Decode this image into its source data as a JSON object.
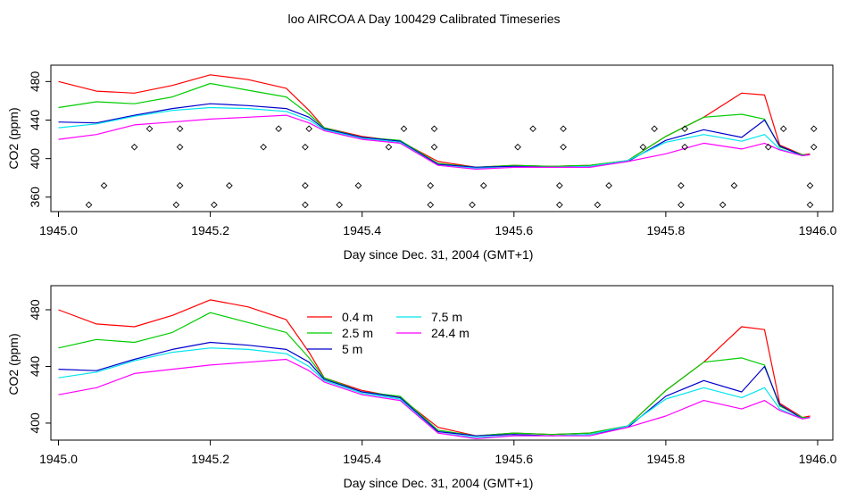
{
  "page_title": "loo AIRCOA A  Day 100429  Calibrated Timeseries",
  "colors": {
    "series_0.4m": "#ff0000",
    "series_2.5m": "#00cc00",
    "series_5m": "#0000cc",
    "series_7.5m": "#00e5ee",
    "series_24.4m": "#ff00ff"
  },
  "chart_data": [
    {
      "type": "line",
      "title": "loo AIRCOA A  Day 100429  Calibrated Timeseries",
      "xlabel": "Day since Dec. 31, 2004 (GMT+1)",
      "ylabel": "CO2 (ppm)",
      "xlim": [
        1944.99,
        1946.02
      ],
      "ylim": [
        345,
        497
      ],
      "xticks": [
        "1945.0",
        "1945.2",
        "1945.4",
        "1945.6",
        "1945.8",
        "1946.0"
      ],
      "yticks": [
        "360",
        "400",
        "440",
        "480"
      ],
      "legend": "none",
      "series": [
        {
          "color": "#ff0000",
          "x": [
            1945.0,
            1945.05,
            1945.1,
            1945.15,
            1945.2,
            1945.25,
            1945.3,
            1945.33,
            1945.35,
            1945.4,
            1945.45,
            1945.5,
            1945.55,
            1945.6,
            1945.65,
            1945.7,
            1945.75,
            1945.8,
            1945.85,
            1945.9,
            1945.93,
            1945.95,
            1945.98,
            1945.99
          ],
          "y": [
            480,
            470,
            468,
            476,
            487,
            482,
            473,
            450,
            432,
            423,
            418,
            397,
            391,
            393,
            392,
            393,
            398,
            423,
            443,
            468,
            466,
            414,
            404,
            405
          ]
        },
        {
          "color": "#00cc00",
          "x": [
            1945.0,
            1945.05,
            1945.1,
            1945.15,
            1945.2,
            1945.25,
            1945.3,
            1945.33,
            1945.35,
            1945.4,
            1945.45,
            1945.5,
            1945.55,
            1945.6,
            1945.65,
            1945.7,
            1945.75,
            1945.8,
            1945.85,
            1945.9,
            1945.93,
            1945.95,
            1945.98,
            1945.99
          ],
          "y": [
            453,
            459,
            457,
            464,
            478,
            471,
            464,
            446,
            432,
            422,
            419,
            395,
            391,
            393,
            392,
            393,
            398,
            423,
            443,
            446,
            441,
            412,
            404,
            404
          ]
        },
        {
          "color": "#0000cc",
          "x": [
            1945.0,
            1945.05,
            1945.1,
            1945.15,
            1945.2,
            1945.25,
            1945.3,
            1945.33,
            1945.35,
            1945.4,
            1945.45,
            1945.5,
            1945.55,
            1945.6,
            1945.65,
            1945.7,
            1945.75,
            1945.8,
            1945.85,
            1945.9,
            1945.93,
            1945.95,
            1945.98,
            1945.99
          ],
          "y": [
            438,
            437,
            445,
            452,
            457,
            455,
            452,
            443,
            431,
            422,
            418,
            394,
            391,
            392,
            391,
            392,
            397,
            419,
            430,
            422,
            440,
            413,
            403,
            404
          ]
        },
        {
          "color": "#00e5ee",
          "x": [
            1945.0,
            1945.05,
            1945.1,
            1945.15,
            1945.2,
            1945.25,
            1945.3,
            1945.33,
            1945.35,
            1945.4,
            1945.45,
            1945.5,
            1945.55,
            1945.6,
            1945.65,
            1945.7,
            1945.75,
            1945.8,
            1945.85,
            1945.9,
            1945.93,
            1945.95,
            1945.98,
            1945.99
          ],
          "y": [
            432,
            436,
            444,
            450,
            453,
            452,
            449,
            440,
            430,
            421,
            417,
            393,
            390,
            391,
            391,
            392,
            398,
            417,
            425,
            418,
            425,
            410,
            403,
            404
          ]
        },
        {
          "color": "#ff00ff",
          "x": [
            1945.0,
            1945.05,
            1945.1,
            1945.15,
            1945.2,
            1945.25,
            1945.3,
            1945.33,
            1945.35,
            1945.4,
            1945.45,
            1945.5,
            1945.55,
            1945.6,
            1945.65,
            1945.7,
            1945.75,
            1945.8,
            1945.85,
            1945.9,
            1945.93,
            1945.95,
            1945.98,
            1945.99
          ],
          "y": [
            420,
            425,
            435,
            438,
            441,
            443,
            445,
            437,
            429,
            420,
            416,
            393,
            389,
            391,
            391,
            391,
            397,
            405,
            416,
            410,
            416,
            409,
            403,
            404
          ]
        }
      ],
      "markers": {
        "style": "open-diamond",
        "x": [
          1945.04,
          1945.06,
          1945.1,
          1945.12,
          1945.155,
          1945.16,
          1945.16,
          1945.16,
          1945.205,
          1945.225,
          1945.27,
          1945.29,
          1945.325,
          1945.325,
          1945.325,
          1945.33,
          1945.37,
          1945.395,
          1945.435,
          1945.455,
          1945.49,
          1945.49,
          1945.495,
          1945.495,
          1945.545,
          1945.56,
          1945.605,
          1945.625,
          1945.66,
          1945.66,
          1945.665,
          1945.665,
          1945.71,
          1945.725,
          1945.77,
          1945.785,
          1945.82,
          1945.82,
          1945.825,
          1945.825,
          1945.875,
          1945.89,
          1945.935,
          1945.955,
          1945.99,
          1945.99,
          1945.995,
          1945.995
        ],
        "y": [
          352,
          372,
          412,
          431,
          352,
          372,
          412,
          431,
          352,
          372,
          412,
          431,
          352,
          372,
          412,
          431,
          352,
          372,
          412,
          431,
          352,
          372,
          412,
          431,
          352,
          372,
          412,
          431,
          352,
          372,
          412,
          431,
          352,
          372,
          412,
          431,
          352,
          372,
          412,
          431,
          352,
          372,
          412,
          431,
          352,
          372,
          412,
          431
        ]
      }
    },
    {
      "type": "line",
      "title": "",
      "xlabel": "Day since Dec. 31, 2004 (GMT+1)",
      "ylabel": "CO2 (ppm)",
      "xlim": [
        1944.99,
        1946.02
      ],
      "ylim": [
        388,
        497
      ],
      "xticks": [
        "1945.0",
        "1945.2",
        "1945.4",
        "1945.6",
        "1945.8",
        "1946.0"
      ],
      "yticks": [
        "400",
        "440",
        "480"
      ],
      "legend": "top-center",
      "series": [
        {
          "name": "0.4 m",
          "color": "#ff0000",
          "x": [
            1945.0,
            1945.05,
            1945.1,
            1945.15,
            1945.2,
            1945.25,
            1945.3,
            1945.33,
            1945.35,
            1945.4,
            1945.45,
            1945.5,
            1945.55,
            1945.6,
            1945.65,
            1945.7,
            1945.75,
            1945.8,
            1945.85,
            1945.9,
            1945.93,
            1945.95,
            1945.98,
            1945.99
          ],
          "y": [
            480,
            470,
            468,
            476,
            487,
            482,
            473,
            450,
            432,
            423,
            418,
            397,
            391,
            393,
            392,
            393,
            398,
            423,
            443,
            468,
            466,
            414,
            404,
            405
          ]
        },
        {
          "name": "2.5 m",
          "color": "#00cc00",
          "x": [
            1945.0,
            1945.05,
            1945.1,
            1945.15,
            1945.2,
            1945.25,
            1945.3,
            1945.33,
            1945.35,
            1945.4,
            1945.45,
            1945.5,
            1945.55,
            1945.6,
            1945.65,
            1945.7,
            1945.75,
            1945.8,
            1945.85,
            1945.9,
            1945.93,
            1945.95,
            1945.98,
            1945.99
          ],
          "y": [
            453,
            459,
            457,
            464,
            478,
            471,
            464,
            446,
            432,
            422,
            419,
            395,
            391,
            393,
            392,
            393,
            398,
            423,
            443,
            446,
            441,
            412,
            404,
            404
          ]
        },
        {
          "name": "5 m",
          "color": "#0000cc",
          "x": [
            1945.0,
            1945.05,
            1945.1,
            1945.15,
            1945.2,
            1945.25,
            1945.3,
            1945.33,
            1945.35,
            1945.4,
            1945.45,
            1945.5,
            1945.55,
            1945.6,
            1945.65,
            1945.7,
            1945.75,
            1945.8,
            1945.85,
            1945.9,
            1945.93,
            1945.95,
            1945.98,
            1945.99
          ],
          "y": [
            438,
            437,
            445,
            452,
            457,
            455,
            452,
            443,
            431,
            422,
            418,
            394,
            391,
            392,
            391,
            392,
            397,
            419,
            430,
            422,
            440,
            413,
            403,
            404
          ]
        },
        {
          "name": "7.5 m",
          "color": "#00e5ee",
          "x": [
            1945.0,
            1945.05,
            1945.1,
            1945.15,
            1945.2,
            1945.25,
            1945.3,
            1945.33,
            1945.35,
            1945.4,
            1945.45,
            1945.5,
            1945.55,
            1945.6,
            1945.65,
            1945.7,
            1945.75,
            1945.8,
            1945.85,
            1945.9,
            1945.93,
            1945.95,
            1945.98,
            1945.99
          ],
          "y": [
            432,
            436,
            444,
            450,
            453,
            452,
            449,
            440,
            430,
            421,
            417,
            393,
            390,
            391,
            391,
            392,
            398,
            417,
            425,
            418,
            425,
            410,
            403,
            404
          ]
        },
        {
          "name": "24.4 m",
          "color": "#ff00ff",
          "x": [
            1945.0,
            1945.05,
            1945.1,
            1945.15,
            1945.2,
            1945.25,
            1945.3,
            1945.33,
            1945.35,
            1945.4,
            1945.45,
            1945.5,
            1945.55,
            1945.6,
            1945.65,
            1945.7,
            1945.75,
            1945.8,
            1945.85,
            1945.9,
            1945.93,
            1945.95,
            1945.98,
            1945.99
          ],
          "y": [
            420,
            425,
            435,
            438,
            441,
            443,
            445,
            437,
            429,
            420,
            416,
            393,
            389,
            391,
            391,
            391,
            397,
            405,
            416,
            410,
            416,
            409,
            403,
            404
          ]
        }
      ]
    }
  ]
}
